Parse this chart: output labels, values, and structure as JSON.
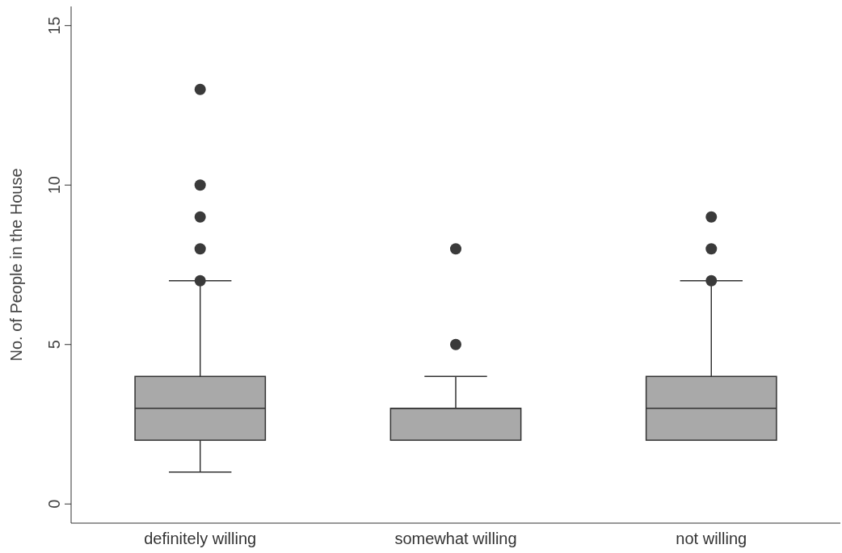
{
  "chart_data": {
    "type": "box",
    "ylabel": "No. of People in the House",
    "categories": [
      "definitely willing",
      "somewhat willing",
      "not willing"
    ],
    "color": "#a9a9a9",
    "ylim": [
      -0.6,
      15.6
    ],
    "yticks": [
      0,
      5,
      10,
      15
    ],
    "grid": false,
    "boxes": [
      {
        "low": 1,
        "q1": 2,
        "median": 3,
        "q3": 4,
        "high": 7,
        "outliers": [
          7,
          8,
          9,
          10,
          13
        ]
      },
      {
        "low": 2,
        "q1": 2,
        "median": 3,
        "q3": 3,
        "high": 4,
        "outliers": [
          5,
          8
        ]
      },
      {
        "low": 2,
        "q1": 2,
        "median": 3,
        "q3": 4,
        "high": 7,
        "outliers": [
          7,
          8,
          9
        ]
      }
    ]
  }
}
